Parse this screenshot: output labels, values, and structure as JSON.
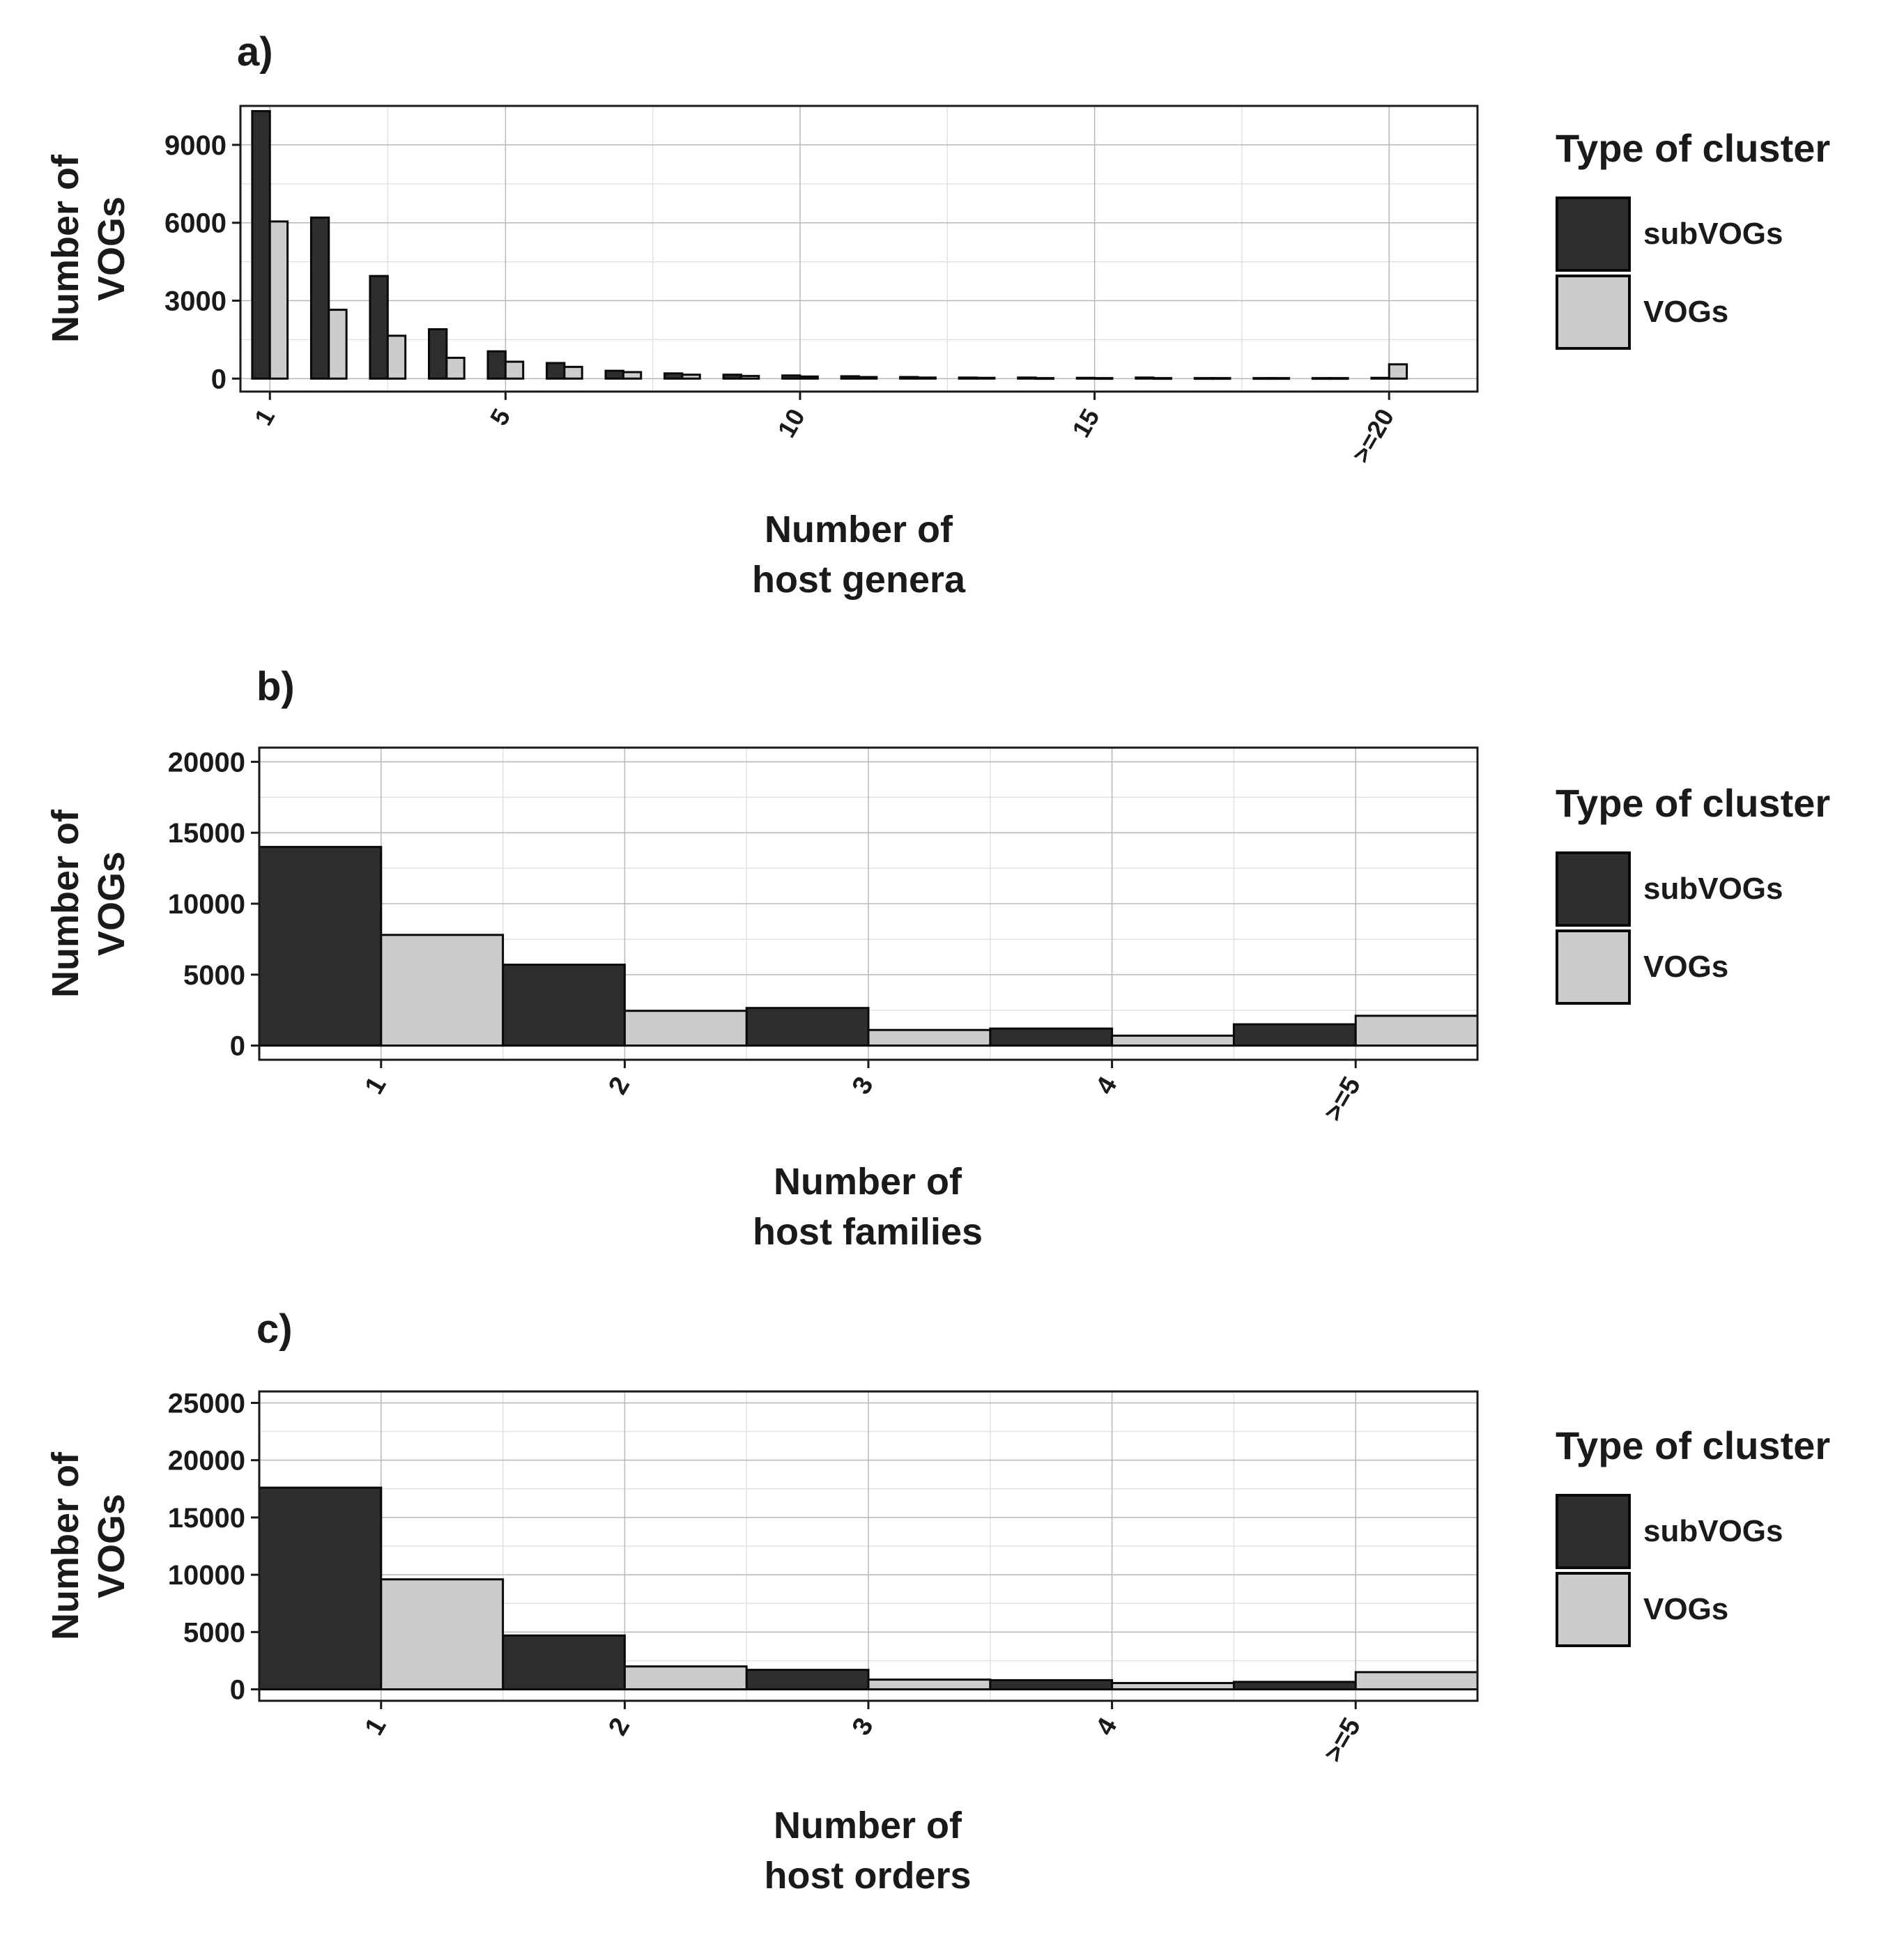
{
  "colors": {
    "subVOGs": "#2e2e2e",
    "VOGs": "#cccccc",
    "bar_outline": "#0a0a0a",
    "grid_major": "#b8b8b8",
    "grid_minor": "#e2e2e2",
    "panel_border": "#1a1a1a"
  },
  "chart_data": [
    {
      "panel_label": "a)",
      "type": "bar",
      "ylabel": "Number of\nVOGs",
      "xlabel": "Number of\nhost genera",
      "xlim": [
        0.5,
        21.5
      ],
      "ylim": [
        -500,
        10500
      ],
      "yticks": [
        0,
        3000,
        6000,
        9000
      ],
      "xticks": [
        {
          "pos": 1,
          "label": "1"
        },
        {
          "pos": 5,
          "label": "5"
        },
        {
          "pos": 10,
          "label": "10"
        },
        {
          "pos": 15,
          "label": "15"
        },
        {
          "pos": 20,
          "label": ">=20"
        }
      ],
      "positions": [
        1,
        2,
        3,
        4,
        5,
        6,
        7,
        8,
        9,
        10,
        11,
        12,
        13,
        14,
        15,
        16,
        17,
        18,
        19,
        20
      ],
      "categories": [
        "1",
        "2",
        "3",
        "4",
        "5",
        "6",
        "7",
        "8",
        "9",
        "10",
        "11",
        "12",
        "13",
        "14",
        "15",
        "16",
        "17",
        "18",
        "19",
        ">=20"
      ],
      "series": [
        {
          "name": "subVOGs",
          "values": [
            10300,
            6200,
            3950,
            1900,
            1050,
            600,
            300,
            200,
            150,
            120,
            90,
            60,
            40,
            40,
            30,
            40,
            20,
            20,
            20,
            30
          ]
        },
        {
          "name": "VOGs",
          "values": [
            6050,
            2650,
            1650,
            800,
            650,
            450,
            250,
            150,
            100,
            80,
            60,
            40,
            30,
            20,
            20,
            20,
            20,
            20,
            20,
            550
          ]
        }
      ],
      "legend": {
        "title": "Type of cluster",
        "items": [
          "subVOGs",
          "VOGs"
        ]
      }
    },
    {
      "panel_label": "b)",
      "type": "bar",
      "ylabel": "Number of\nVOGs",
      "xlabel": "Number of\nhost families",
      "xlim": [
        0.5,
        5.5
      ],
      "ylim": [
        -1000,
        21000
      ],
      "yticks": [
        0,
        5000,
        10000,
        15000,
        20000
      ],
      "xticks": [
        {
          "pos": 1,
          "label": "1"
        },
        {
          "pos": 2,
          "label": "2"
        },
        {
          "pos": 3,
          "label": "3"
        },
        {
          "pos": 4,
          "label": "4"
        },
        {
          "pos": 5,
          "label": ">=5"
        }
      ],
      "positions": [
        1,
        2,
        3,
        4,
        5
      ],
      "categories": [
        "1",
        "2",
        "3",
        "4",
        ">=5"
      ],
      "series": [
        {
          "name": "subVOGs",
          "values": [
            14000,
            5700,
            2650,
            1200,
            1500
          ]
        },
        {
          "name": "VOGs",
          "values": [
            7800,
            2450,
            1100,
            700,
            2100
          ]
        }
      ],
      "legend": {
        "title": "Type of cluster",
        "items": [
          "subVOGs",
          "VOGs"
        ]
      }
    },
    {
      "panel_label": "c)",
      "type": "bar",
      "ylabel": "Number of\nVOGs",
      "xlabel": "Number of\nhost orders",
      "xlim": [
        0.5,
        5.5
      ],
      "ylim": [
        -1000,
        26000
      ],
      "yticks": [
        0,
        5000,
        10000,
        15000,
        20000,
        25000
      ],
      "xticks": [
        {
          "pos": 1,
          "label": "1"
        },
        {
          "pos": 2,
          "label": "2"
        },
        {
          "pos": 3,
          "label": "3"
        },
        {
          "pos": 4,
          "label": "4"
        },
        {
          "pos": 5,
          "label": ">=5"
        }
      ],
      "positions": [
        1,
        2,
        3,
        4,
        5
      ],
      "categories": [
        "1",
        "2",
        "3",
        "4",
        ">=5"
      ],
      "series": [
        {
          "name": "subVOGs",
          "values": [
            17600,
            4700,
            1700,
            800,
            650
          ]
        },
        {
          "name": "VOGs",
          "values": [
            9600,
            2000,
            850,
            550,
            1500
          ]
        }
      ],
      "legend": {
        "title": "Type of cluster",
        "items": [
          "subVOGs",
          "VOGs"
        ]
      }
    }
  ]
}
